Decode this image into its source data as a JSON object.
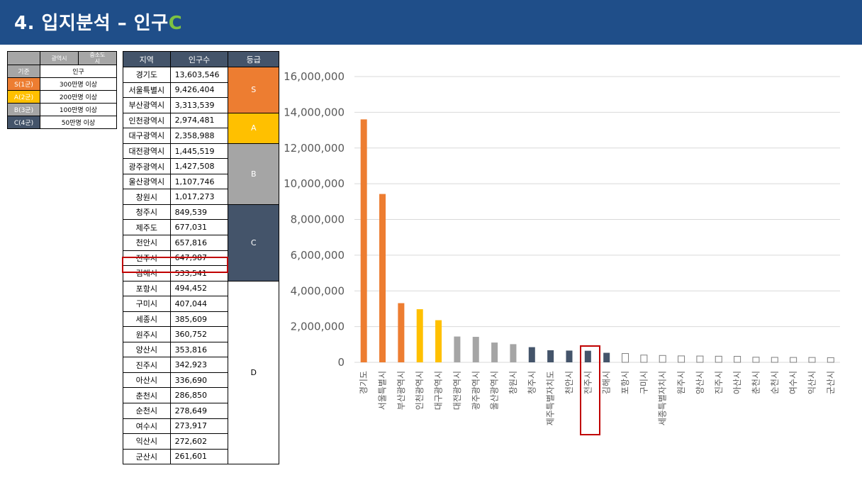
{
  "header": {
    "title_main": "4. 입지분석 – 인구",
    "title_accent": "C"
  },
  "legend": {
    "header_cols": [
      "광역시",
      "중소도\n시"
    ],
    "basis_label": "기준",
    "basis_value": "인구",
    "rows": [
      {
        "key": "S(1군)",
        "value": "300만명 이상",
        "color": "#ed7d31"
      },
      {
        "key": "A(2군)",
        "value": "200만명 이상",
        "color": "#ffc000"
      },
      {
        "key": "B(3군)",
        "value": "100만명 이상",
        "color": "#a5a5a5"
      },
      {
        "key": "C(4군)",
        "value": "50만명 이상",
        "color": "#44546a"
      }
    ]
  },
  "table": {
    "headers": [
      "지역",
      "인구수",
      "등급"
    ],
    "rows": [
      {
        "region": "경기도",
        "pop": "13,603,546"
      },
      {
        "region": "서울특별시",
        "pop": "9,426,404"
      },
      {
        "region": "부산광역시",
        "pop": "3,313,539"
      },
      {
        "region": "인천광역시",
        "pop": "2,974,481"
      },
      {
        "region": "대구광역시",
        "pop": "2,358,988"
      },
      {
        "region": "대전광역시",
        "pop": "1,445,519"
      },
      {
        "region": "광주광역시",
        "pop": "1,427,508"
      },
      {
        "region": "울산광역시",
        "pop": "1,107,746"
      },
      {
        "region": "창원시",
        "pop": "1,017,273"
      },
      {
        "region": "청주시",
        "pop": "849,539"
      },
      {
        "region": "제주도",
        "pop": "677,031"
      },
      {
        "region": "천안시",
        "pop": "657,816"
      },
      {
        "region": "전주시",
        "pop": "647,987"
      },
      {
        "region": "김해시",
        "pop": "533,541"
      },
      {
        "region": "포항시",
        "pop": "494,452"
      },
      {
        "region": "구미시",
        "pop": "407,044"
      },
      {
        "region": "세종시",
        "pop": "385,609"
      },
      {
        "region": "원주시",
        "pop": "360,752"
      },
      {
        "region": "양산시",
        "pop": "353,816"
      },
      {
        "region": "진주시",
        "pop": "342,923"
      },
      {
        "region": "아산시",
        "pop": "336,690"
      },
      {
        "region": "춘천시",
        "pop": "286,850"
      },
      {
        "region": "순천시",
        "pop": "278,649"
      },
      {
        "region": "여수시",
        "pop": "273,917"
      },
      {
        "region": "익산시",
        "pop": "272,602"
      },
      {
        "region": "군산시",
        "pop": "261,601"
      }
    ],
    "grades": [
      {
        "label": "S",
        "color": "#ed7d31"
      },
      {
        "label": "A",
        "color": "#ffc000"
      },
      {
        "label": "B",
        "color": "#a5a5a5"
      },
      {
        "label": "C",
        "color": "#44546a"
      },
      {
        "label": "D",
        "color": "#ffffff"
      }
    ]
  },
  "chart_data": {
    "type": "bar",
    "categories": [
      "경기도",
      "서울특별시",
      "부산광역시",
      "인천광역시",
      "대구광역시",
      "대전광역시",
      "광주광역시",
      "울산광역시",
      "창원시",
      "청주시",
      "제주특별자치도",
      "천안시",
      "전주시",
      "김해시",
      "포항시",
      "구미시",
      "세종특별자치시",
      "원주시",
      "양산시",
      "진주시",
      "아산시",
      "춘천시",
      "순천시",
      "여수시",
      "익산시",
      "군산시"
    ],
    "values": [
      13603546,
      9426404,
      3313539,
      2974481,
      2358988,
      1445519,
      1427508,
      1107746,
      1017273,
      849539,
      677031,
      657816,
      647987,
      533541,
      494452,
      407044,
      385609,
      360752,
      353816,
      342923,
      336690,
      286850,
      278649,
      273917,
      272602,
      261601
    ],
    "grade_colors": [
      "#ed7d31",
      "#ed7d31",
      "#ed7d31",
      "#ffc000",
      "#ffc000",
      "#a5a5a5",
      "#a5a5a5",
      "#a5a5a5",
      "#a5a5a5",
      "#44546a",
      "#44546a",
      "#44546a",
      "#44546a",
      "#44546a",
      "#ffffff",
      "#ffffff",
      "#ffffff",
      "#ffffff",
      "#ffffff",
      "#ffffff",
      "#ffffff",
      "#ffffff",
      "#ffffff",
      "#ffffff",
      "#ffffff",
      "#ffffff"
    ],
    "yticks": [
      "0",
      "2,000,000",
      "4,000,000",
      "6,000,000",
      "8,000,000",
      "10,000,000",
      "12,000,000",
      "14,000,000",
      "16,000,000"
    ],
    "ylim": [
      0,
      16000000
    ],
    "highlight": "전주시",
    "highlight_color": "#c00000",
    "grid": true,
    "title": "",
    "xlabel": "",
    "ylabel": ""
  }
}
